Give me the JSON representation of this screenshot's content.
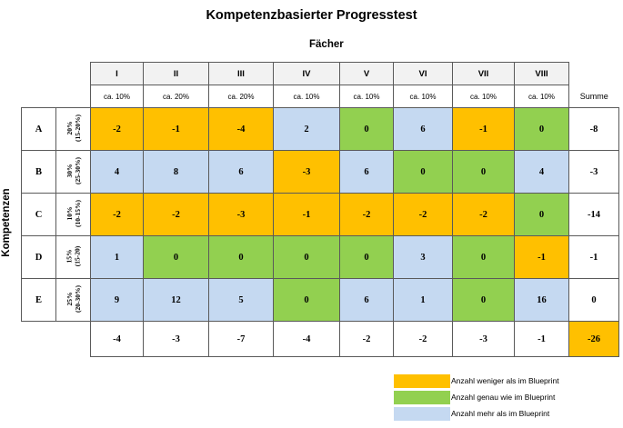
{
  "title": "Kompetenzbasierter Progresstest",
  "column_axis_label": "Fächer",
  "row_axis_label": "Kompetenzen",
  "summe_label": "Summe",
  "colors": {
    "less": "#ffc000",
    "equal": "#92d050",
    "more": "#c5d9f1",
    "header": "#f2f2f2"
  },
  "columns": [
    {
      "label": "I",
      "share": "ca. 10%"
    },
    {
      "label": "II",
      "share": "ca. 20%"
    },
    {
      "label": "III",
      "share": "ca. 20%"
    },
    {
      "label": "IV",
      "share": "ca. 10%"
    },
    {
      "label": "V",
      "share": "ca. 10%"
    },
    {
      "label": "VI",
      "share": "ca. 10%"
    },
    {
      "label": "VII",
      "share": "ca. 10%"
    },
    {
      "label": "VIII",
      "share": "ca. 10%"
    }
  ],
  "rows": [
    {
      "label": "A",
      "share_main": "20%",
      "share_range": "(15-20%)",
      "values": [
        "-2",
        "-1",
        "-4",
        "2",
        "0",
        "6",
        "-1",
        "0"
      ],
      "sum": "-8"
    },
    {
      "label": "B",
      "share_main": "30%",
      "share_range": "(25-30%)",
      "values": [
        "4",
        "8",
        "6",
        "-3",
        "6",
        "0",
        "0",
        "4"
      ],
      "sum": "-3"
    },
    {
      "label": "C",
      "share_main": "10%",
      "share_range": "(10-15%)",
      "values": [
        "-2",
        "-2",
        "-3",
        "-1",
        "-2",
        "-2",
        "-2",
        "0"
      ],
      "sum": "-14"
    },
    {
      "label": "D",
      "share_main": "15%",
      "share_range": "(15-20)",
      "values": [
        "1",
        "0",
        "0",
        "0",
        "0",
        "3",
        "0",
        "-1"
      ],
      "sum": "-1"
    },
    {
      "label": "E",
      "share_main": "25%",
      "share_range": "(20-30%)",
      "values": [
        "9",
        "12",
        "5",
        "0",
        "6",
        "1",
        "0",
        "16"
      ],
      "sum": "0"
    }
  ],
  "column_sums": [
    "-4",
    "-3",
    "-7",
    "-4",
    "-2",
    "-2",
    "-3",
    "-1"
  ],
  "total": "-26",
  "legend": [
    {
      "color_key": "less",
      "label": "Anzahl weniger als im  Blueprint"
    },
    {
      "color_key": "equal",
      "label": "Anzahl genau wie im  Blueprint"
    },
    {
      "color_key": "more",
      "label": "Anzahl mehr als im  Blueprint"
    }
  ]
}
